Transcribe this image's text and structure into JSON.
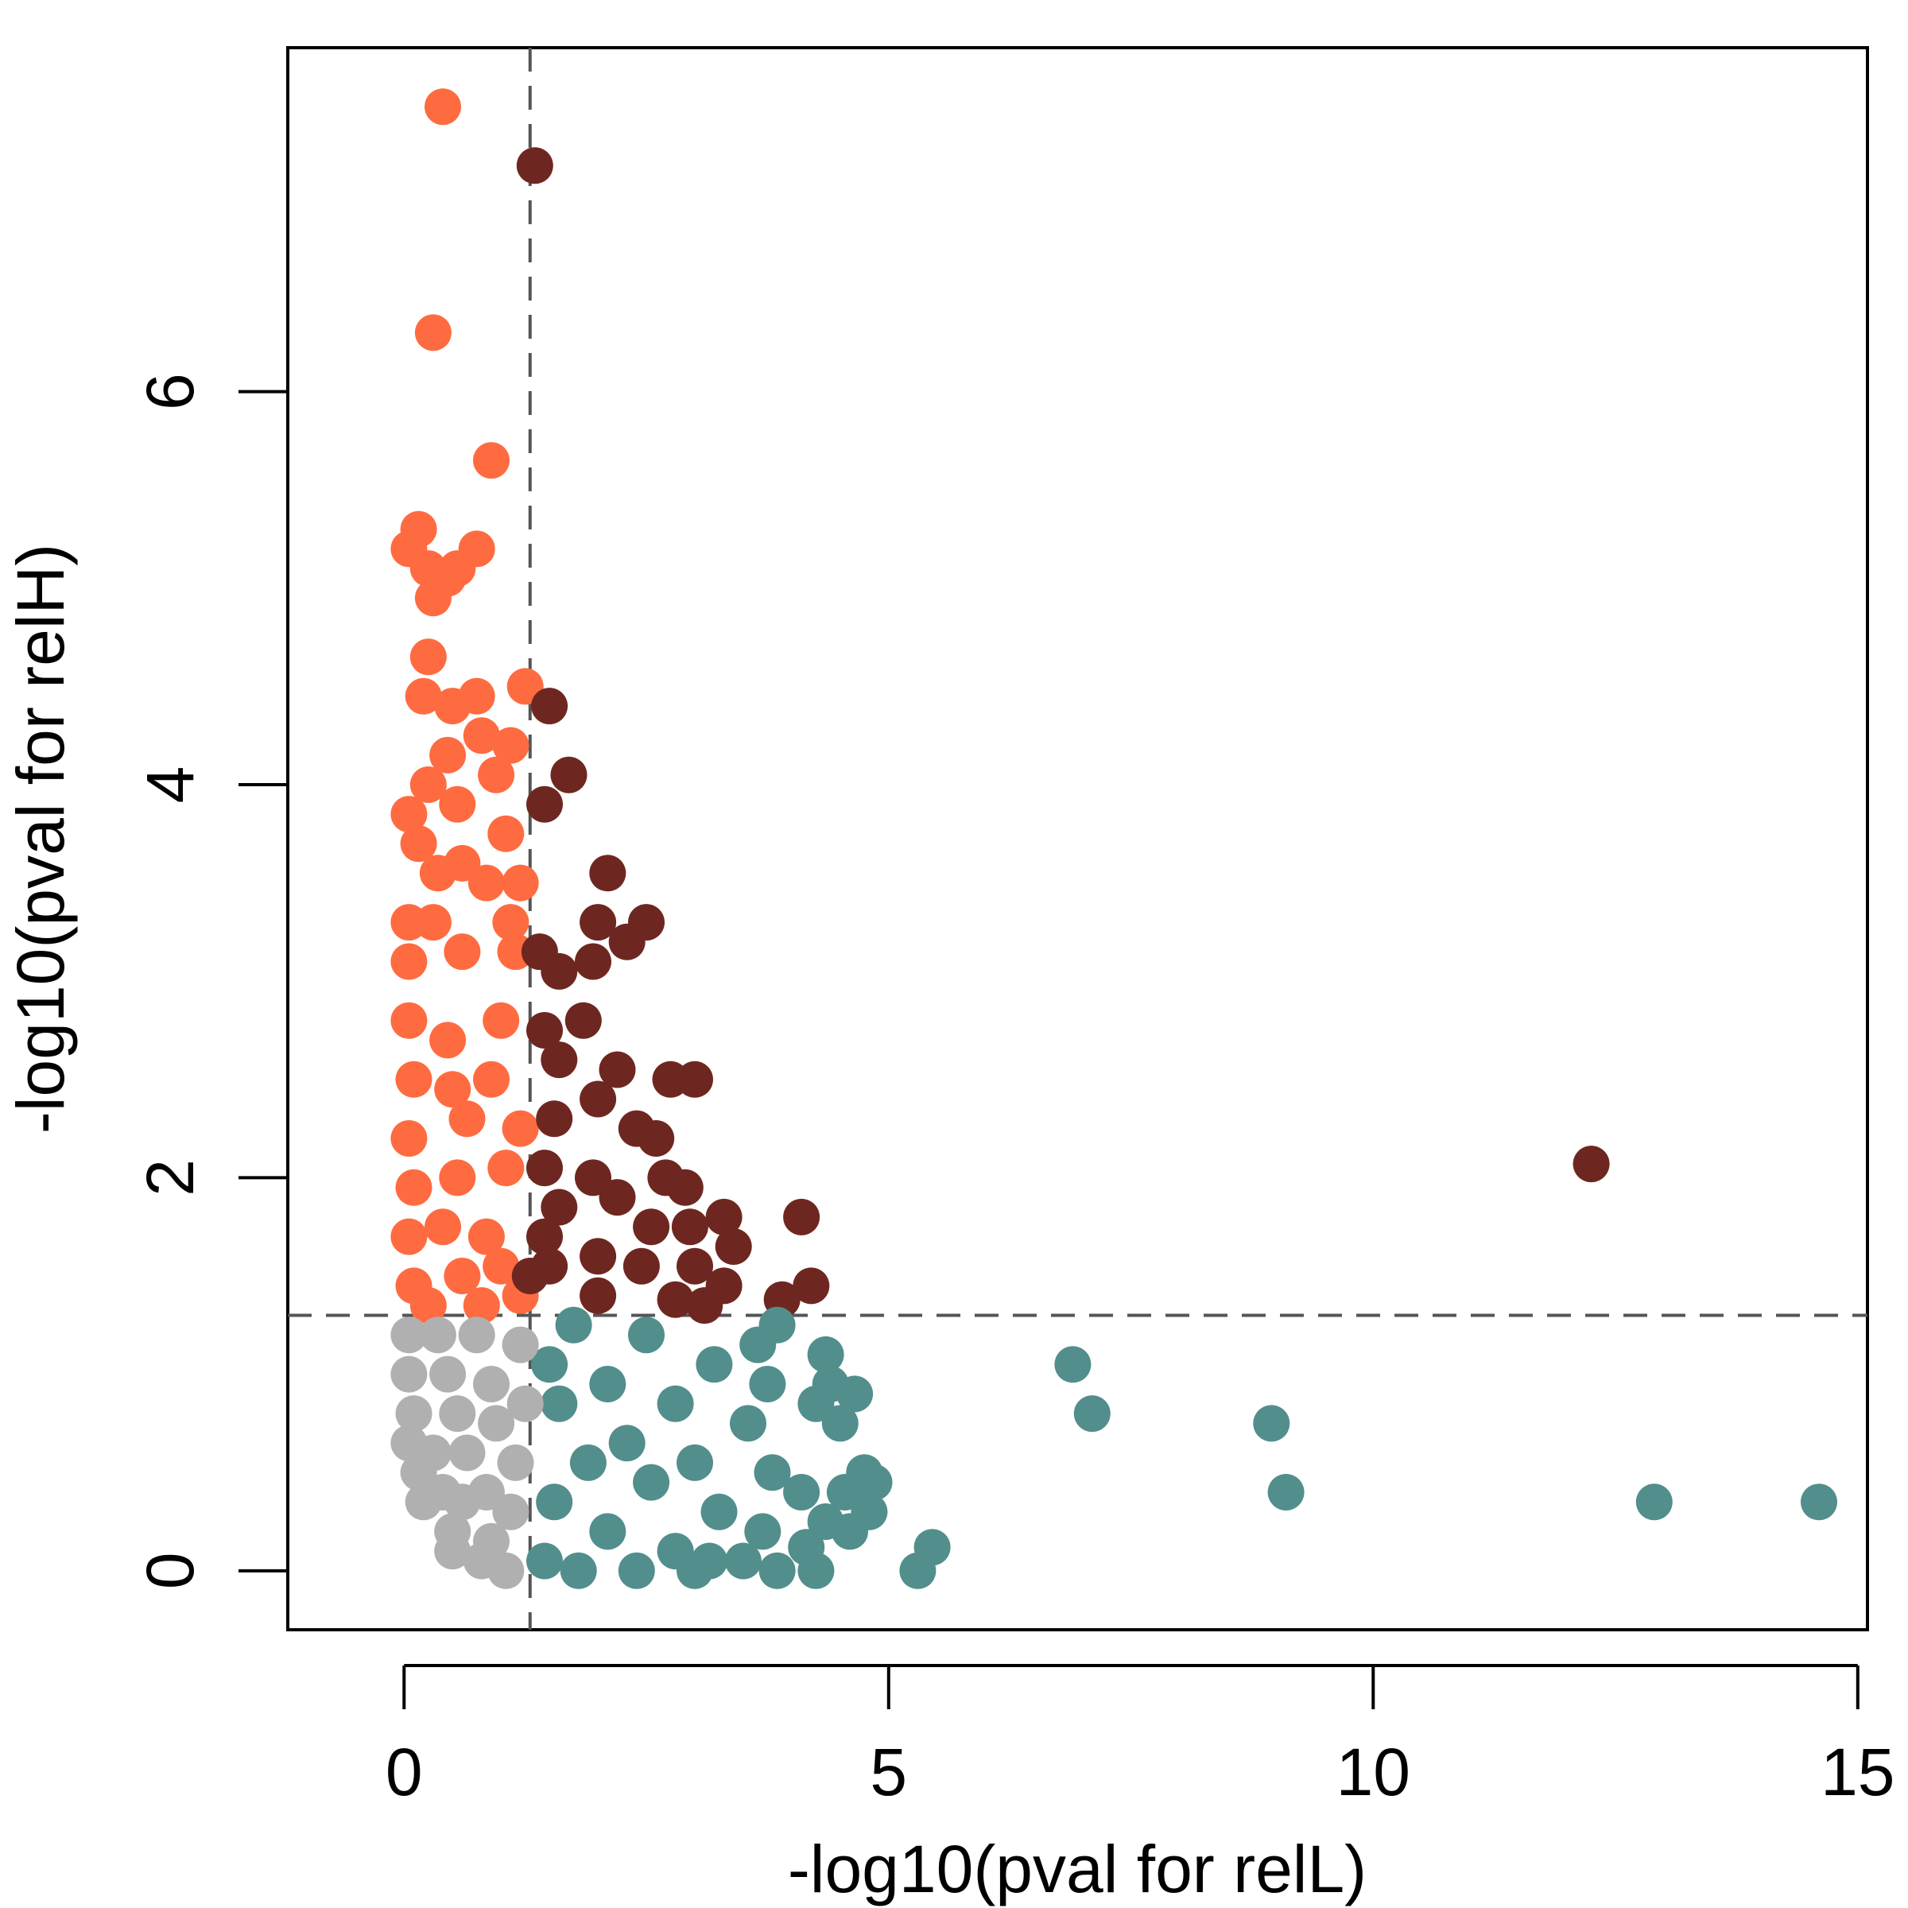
{
  "chart_data": {
    "type": "scatter",
    "title": "",
    "xlabel": "-log10(pval for relL)",
    "ylabel": "-log10(pval for relH)",
    "xlim": [
      -1.2,
      15.1
    ],
    "ylim": [
      -0.3,
      7.75
    ],
    "xticks": [
      0,
      5,
      10,
      15
    ],
    "yticks": [
      0,
      2,
      4,
      6
    ],
    "grid": false,
    "legend": "none",
    "threshold_x": 1.3,
    "threshold_y": 1.3,
    "colors": {
      "relH_only": "#FF6B40",
      "both": "#6E2720",
      "relL_only": "#528E8C",
      "neither": "#B0B0B0",
      "threshold_line": "#555555"
    },
    "series": [
      {
        "category": "relH_only",
        "points": [
          [
            0.4,
            7.45
          ],
          [
            0.3,
            6.3
          ],
          [
            0.9,
            5.65
          ],
          [
            0.05,
            5.2
          ],
          [
            0.15,
            5.3
          ],
          [
            0.25,
            5.1
          ],
          [
            0.45,
            5.05
          ],
          [
            0.55,
            5.1
          ],
          [
            0.75,
            5.2
          ],
          [
            0.3,
            4.95
          ],
          [
            0.25,
            4.65
          ],
          [
            0.2,
            4.45
          ],
          [
            0.5,
            4.4
          ],
          [
            0.75,
            4.45
          ],
          [
            1.25,
            4.5
          ],
          [
            0.45,
            4.15
          ],
          [
            0.8,
            4.25
          ],
          [
            1.1,
            4.2
          ],
          [
            0.95,
            4.05
          ],
          [
            0.05,
            3.85
          ],
          [
            0.25,
            4.0
          ],
          [
            0.55,
            3.9
          ],
          [
            0.15,
            3.7
          ],
          [
            1.05,
            3.75
          ],
          [
            0.35,
            3.55
          ],
          [
            0.6,
            3.6
          ],
          [
            0.85,
            3.5
          ],
          [
            1.2,
            3.5
          ],
          [
            0.05,
            3.3
          ],
          [
            0.3,
            3.3
          ],
          [
            1.1,
            3.3
          ],
          [
            0.05,
            3.1
          ],
          [
            0.6,
            3.15
          ],
          [
            1.15,
            3.15
          ],
          [
            0.05,
            2.8
          ],
          [
            0.45,
            2.7
          ],
          [
            1.0,
            2.8
          ],
          [
            0.1,
            2.5
          ],
          [
            0.5,
            2.45
          ],
          [
            0.9,
            2.5
          ],
          [
            0.05,
            2.2
          ],
          [
            0.65,
            2.3
          ],
          [
            1.2,
            2.25
          ],
          [
            0.1,
            1.95
          ],
          [
            0.55,
            2.0
          ],
          [
            1.05,
            2.05
          ],
          [
            0.05,
            1.7
          ],
          [
            0.4,
            1.75
          ],
          [
            0.85,
            1.7
          ],
          [
            0.1,
            1.45
          ],
          [
            0.6,
            1.5
          ],
          [
            1.0,
            1.55
          ],
          [
            0.25,
            1.35
          ],
          [
            0.8,
            1.35
          ],
          [
            1.2,
            1.4
          ]
        ]
      },
      {
        "category": "both",
        "points": [
          [
            1.35,
            7.15
          ],
          [
            1.5,
            4.4
          ],
          [
            1.7,
            4.05
          ],
          [
            1.45,
            3.9
          ],
          [
            2.1,
            3.55
          ],
          [
            2.5,
            3.3
          ],
          [
            2.0,
            3.3
          ],
          [
            1.4,
            3.15
          ],
          [
            2.3,
            3.2
          ],
          [
            1.6,
            3.05
          ],
          [
            1.95,
            3.1
          ],
          [
            1.45,
            2.75
          ],
          [
            1.85,
            2.8
          ],
          [
            1.6,
            2.6
          ],
          [
            2.2,
            2.55
          ],
          [
            2.75,
            2.5
          ],
          [
            3.0,
            2.5
          ],
          [
            2.0,
            2.4
          ],
          [
            1.55,
            2.3
          ],
          [
            2.4,
            2.25
          ],
          [
            2.6,
            2.2
          ],
          [
            1.45,
            2.05
          ],
          [
            1.95,
            2.0
          ],
          [
            2.7,
            2.0
          ],
          [
            2.9,
            1.95
          ],
          [
            1.6,
            1.85
          ],
          [
            2.2,
            1.9
          ],
          [
            3.3,
            1.8
          ],
          [
            4.1,
            1.8
          ],
          [
            1.45,
            1.7
          ],
          [
            2.55,
            1.75
          ],
          [
            2.95,
            1.75
          ],
          [
            3.4,
            1.65
          ],
          [
            1.5,
            1.55
          ],
          [
            2.0,
            1.6
          ],
          [
            2.45,
            1.55
          ],
          [
            3.0,
            1.55
          ],
          [
            1.3,
            1.5
          ],
          [
            3.3,
            1.45
          ],
          [
            4.2,
            1.45
          ],
          [
            3.9,
            1.38
          ],
          [
            2.0,
            1.4
          ],
          [
            2.8,
            1.38
          ],
          [
            3.1,
            1.35
          ],
          [
            12.25,
            2.07
          ]
        ]
      },
      {
        "category": "relL_only",
        "points": [
          [
            1.75,
            1.25
          ],
          [
            3.85,
            1.25
          ],
          [
            2.5,
            1.2
          ],
          [
            3.65,
            1.15
          ],
          [
            4.35,
            1.1
          ],
          [
            1.5,
            1.05
          ],
          [
            3.2,
            1.05
          ],
          [
            6.9,
            1.05
          ],
          [
            2.1,
            0.95
          ],
          [
            3.75,
            0.95
          ],
          [
            4.4,
            0.95
          ],
          [
            4.65,
            0.9
          ],
          [
            1.6,
            0.85
          ],
          [
            2.8,
            0.85
          ],
          [
            4.25,
            0.85
          ],
          [
            7.1,
            0.8
          ],
          [
            8.95,
            0.75
          ],
          [
            3.55,
            0.75
          ],
          [
            4.5,
            0.75
          ],
          [
            2.3,
            0.65
          ],
          [
            1.9,
            0.55
          ],
          [
            3.0,
            0.55
          ],
          [
            3.8,
            0.5
          ],
          [
            4.75,
            0.5
          ],
          [
            2.55,
            0.45
          ],
          [
            4.85,
            0.45
          ],
          [
            9.1,
            0.4
          ],
          [
            4.1,
            0.4
          ],
          [
            4.55,
            0.4
          ],
          [
            12.9,
            0.35
          ],
          [
            14.6,
            0.35
          ],
          [
            1.55,
            0.35
          ],
          [
            3.25,
            0.3
          ],
          [
            4.8,
            0.3
          ],
          [
            4.35,
            0.25
          ],
          [
            2.1,
            0.2
          ],
          [
            3.7,
            0.2
          ],
          [
            4.6,
            0.2
          ],
          [
            5.45,
            0.12
          ],
          [
            4.15,
            0.12
          ],
          [
            2.8,
            0.1
          ],
          [
            1.45,
            0.05
          ],
          [
            3.15,
            0.05
          ],
          [
            3.5,
            0.05
          ],
          [
            3.85,
            0.0
          ],
          [
            5.3,
            0.0
          ],
          [
            4.25,
            0.0
          ],
          [
            1.8,
            0.0
          ],
          [
            2.4,
            0.0
          ],
          [
            3.0,
            0.0
          ]
        ]
      },
      {
        "category": "neither",
        "points": [
          [
            0.05,
            1.2
          ],
          [
            0.35,
            1.2
          ],
          [
            0.75,
            1.2
          ],
          [
            1.2,
            1.15
          ],
          [
            0.05,
            1.0
          ],
          [
            0.45,
            1.0
          ],
          [
            0.9,
            0.95
          ],
          [
            1.25,
            0.85
          ],
          [
            0.1,
            0.8
          ],
          [
            0.55,
            0.8
          ],
          [
            0.95,
            0.75
          ],
          [
            0.05,
            0.65
          ],
          [
            0.3,
            0.6
          ],
          [
            0.65,
            0.6
          ],
          [
            1.15,
            0.55
          ],
          [
            0.15,
            0.5
          ],
          [
            0.4,
            0.4
          ],
          [
            0.85,
            0.4
          ],
          [
            0.2,
            0.35
          ],
          [
            0.6,
            0.35
          ],
          [
            1.1,
            0.3
          ],
          [
            0.5,
            0.2
          ],
          [
            0.9,
            0.15
          ],
          [
            0.5,
            0.1
          ],
          [
            0.8,
            0.05
          ],
          [
            1.05,
            0.0
          ]
        ]
      }
    ]
  }
}
